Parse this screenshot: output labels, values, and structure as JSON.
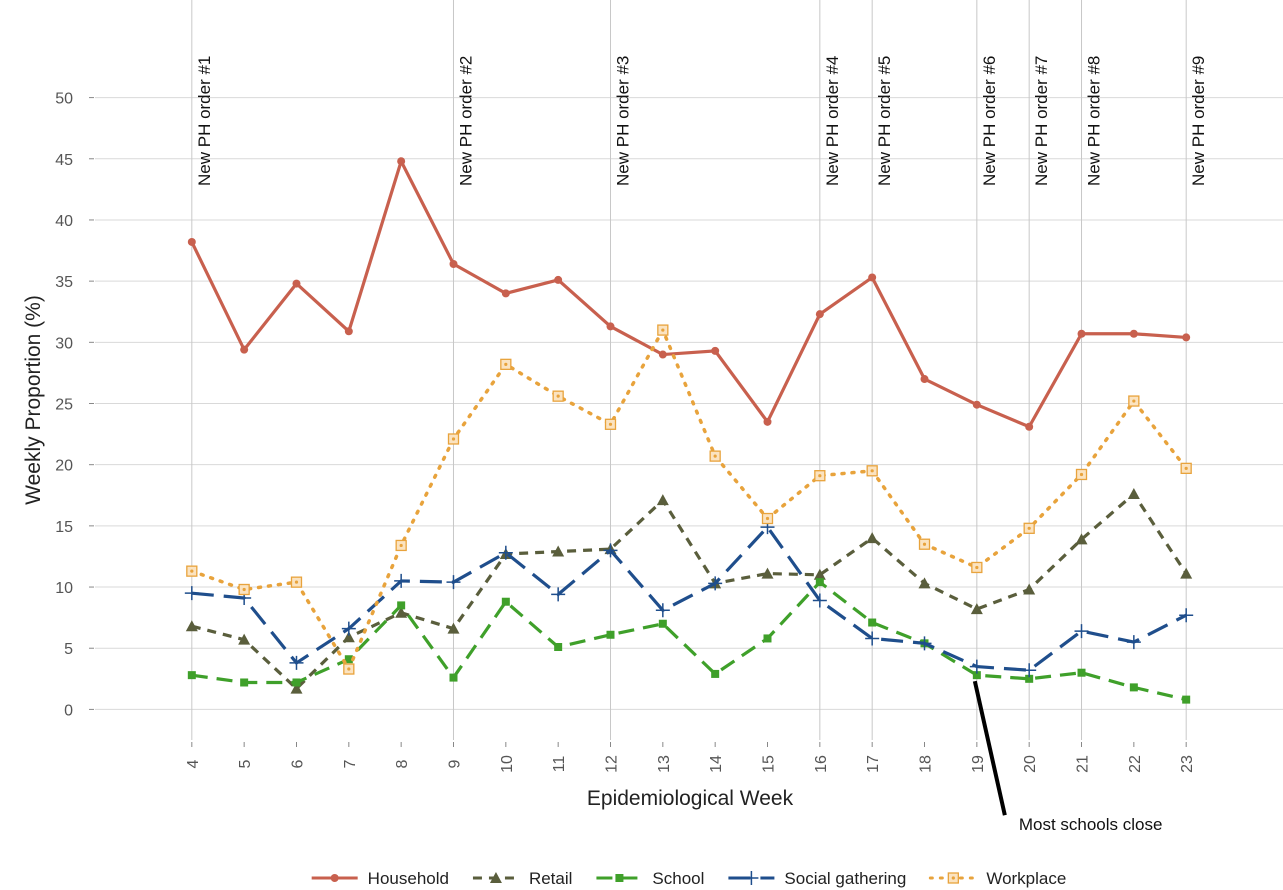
{
  "chart_data": {
    "type": "line",
    "x_label": "Epidemiological Week",
    "y_label": "Weekly Proportion (%)",
    "x": [
      4,
      5,
      6,
      7,
      8,
      9,
      10,
      11,
      12,
      13,
      14,
      15,
      16,
      17,
      18,
      19,
      20,
      21,
      22,
      23
    ],
    "xlim": [
      2.15,
      24.85
    ],
    "xticks": [
      4,
      5,
      6,
      7,
      8,
      9,
      10,
      11,
      12,
      13,
      14,
      15,
      16,
      17,
      18,
      19,
      20,
      21,
      22,
      23
    ],
    "ylim": [
      -2.5,
      52.5
    ],
    "yticks": [
      0,
      5,
      10,
      15,
      20,
      25,
      30,
      35,
      40,
      45,
      50
    ],
    "grid": "y",
    "series": [
      {
        "name": "Household",
        "color": "#c8604e",
        "linestyle": "solid",
        "marker": "circle",
        "values": [
          38.2,
          29.4,
          34.8,
          30.9,
          44.8,
          36.4,
          34.0,
          35.1,
          31.3,
          29.0,
          29.3,
          23.5,
          32.3,
          35.3,
          27.0,
          24.9,
          23.1,
          30.7,
          30.7,
          30.4
        ]
      },
      {
        "name": "Retail",
        "color": "#5a5e3c",
        "linestyle": "dashed",
        "marker": "triangle",
        "values": [
          6.8,
          5.7,
          1.7,
          5.9,
          7.9,
          6.6,
          12.7,
          12.9,
          13.1,
          17.1,
          10.3,
          11.1,
          11.0,
          14.0,
          10.3,
          8.2,
          9.8,
          13.9,
          17.6,
          11.1
        ]
      },
      {
        "name": "School",
        "color": "#3fa02a",
        "linestyle": "longdash",
        "marker": "square",
        "values": [
          2.8,
          2.2,
          2.2,
          4.1,
          8.5,
          2.6,
          8.8,
          5.1,
          6.1,
          7.0,
          2.9,
          5.8,
          10.4,
          7.1,
          5.4,
          2.8,
          2.5,
          3.0,
          1.8,
          0.8
        ]
      },
      {
        "name": "Social gathering",
        "color": "#1f4e8c",
        "linestyle": "longdash2",
        "marker": "plus",
        "values": [
          9.5,
          9.1,
          3.8,
          6.6,
          10.5,
          10.4,
          12.8,
          9.4,
          13.0,
          8.1,
          10.3,
          14.9,
          8.9,
          5.8,
          5.4,
          3.5,
          3.2,
          6.4,
          5.5,
          7.7
        ]
      },
      {
        "name": "Workplace",
        "color": "#e8a33c",
        "linestyle": "dotted",
        "marker": "square-dot",
        "values": [
          11.3,
          9.8,
          10.4,
          3.3,
          13.4,
          22.1,
          28.2,
          25.6,
          23.3,
          31.0,
          20.7,
          15.6,
          19.1,
          19.5,
          13.5,
          11.6,
          14.8,
          19.2,
          25.2,
          19.7
        ]
      }
    ],
    "annotations": [
      {
        "x": 4,
        "label": "New PH order #1"
      },
      {
        "x": 9,
        "label": "New PH order #2"
      },
      {
        "x": 12,
        "label": "New PH order #3"
      },
      {
        "x": 16,
        "label": "New PH order #4"
      },
      {
        "x": 17,
        "label": "New PH order #5"
      },
      {
        "x": 19,
        "label": "New PH order #6"
      },
      {
        "x": 20,
        "label": "New PH order #7"
      },
      {
        "x": 21,
        "label": "New PH order #8"
      },
      {
        "x": 23,
        "label": "New PH order #9"
      }
    ],
    "callout": {
      "text": "Most schools close",
      "x": 19,
      "y": 2.8
    }
  }
}
